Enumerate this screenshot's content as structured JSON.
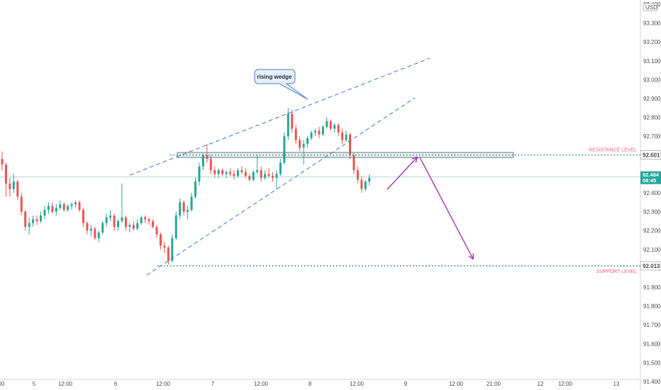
{
  "chart_data": {
    "type": "candlestick",
    "currency": "USD",
    "ylim": [
      91.4,
      93.5
    ],
    "y_ticks": [
      "91.400",
      "91.500",
      "91.600",
      "91.700",
      "91.800",
      "91.900",
      "92.100",
      "92.200",
      "92.300",
      "92.400",
      "92.700",
      "92.800",
      "92.900",
      "93.000",
      "93.100",
      "93.200",
      "93.300",
      "93.400"
    ],
    "x_ticks": [
      "00",
      "5",
      "12:00",
      "6",
      "12:00",
      "7",
      "12:00",
      "8",
      "12:00",
      "9",
      "12:00",
      "21:00",
      "12",
      "12:00",
      "13"
    ],
    "last_price": {
      "value": "92.484",
      "countdown": "08:45"
    },
    "resistance": {
      "label": "RESISTANCE LEVEL",
      "value": "92.601"
    },
    "support": {
      "label": "SUPPORT LEVEL",
      "value": "92.013"
    },
    "annotation": "rising wedge",
    "candles": [
      [
        92.58,
        92.62,
        92.52,
        92.55
      ],
      [
        92.55,
        92.56,
        92.38,
        92.45
      ],
      [
        92.45,
        92.48,
        92.38,
        92.42
      ],
      [
        92.42,
        92.5,
        92.4,
        92.46
      ],
      [
        92.46,
        92.47,
        92.36,
        92.38
      ],
      [
        92.38,
        92.4,
        92.28,
        92.3
      ],
      [
        92.3,
        92.31,
        92.2,
        92.22
      ],
      [
        92.22,
        92.27,
        92.18,
        92.24
      ],
      [
        92.24,
        92.28,
        92.22,
        92.26
      ],
      [
        92.26,
        92.28,
        92.23,
        92.25
      ],
      [
        92.25,
        92.3,
        92.24,
        92.28
      ],
      [
        92.28,
        92.33,
        92.26,
        92.31
      ],
      [
        92.31,
        92.35,
        92.29,
        92.33
      ],
      [
        92.33,
        92.35,
        92.29,
        92.3
      ],
      [
        92.3,
        92.34,
        92.28,
        92.32
      ],
      [
        92.32,
        92.36,
        92.31,
        92.34
      ],
      [
        92.34,
        92.35,
        92.3,
        92.31
      ],
      [
        92.31,
        92.34,
        92.3,
        92.33
      ],
      [
        92.33,
        92.35,
        92.31,
        92.34
      ],
      [
        92.34,
        92.36,
        92.32,
        92.35
      ],
      [
        92.35,
        92.36,
        92.3,
        92.31
      ],
      [
        92.31,
        92.32,
        92.22,
        92.24
      ],
      [
        92.24,
        92.25,
        92.18,
        92.2
      ],
      [
        92.2,
        92.23,
        92.17,
        92.21
      ],
      [
        92.21,
        92.22,
        92.15,
        92.16
      ],
      [
        92.16,
        92.2,
        92.14,
        92.19
      ],
      [
        92.19,
        92.25,
        92.18,
        92.24
      ],
      [
        92.24,
        92.29,
        92.22,
        92.27
      ],
      [
        92.27,
        92.31,
        92.25,
        92.28
      ],
      [
        92.28,
        92.29,
        92.2,
        92.22
      ],
      [
        92.22,
        92.26,
        92.2,
        92.25
      ],
      [
        92.25,
        92.45,
        92.24,
        92.27
      ],
      [
        92.27,
        92.28,
        92.2,
        92.22
      ],
      [
        92.22,
        92.24,
        92.19,
        92.23
      ],
      [
        92.23,
        92.25,
        92.2,
        92.21
      ],
      [
        92.21,
        92.26,
        92.2,
        92.24
      ],
      [
        92.24,
        92.28,
        92.23,
        92.27
      ],
      [
        92.27,
        92.28,
        92.24,
        92.26
      ],
      [
        92.26,
        92.27,
        92.23,
        92.25
      ],
      [
        92.25,
        92.26,
        92.21,
        92.22
      ],
      [
        92.22,
        92.23,
        92.16,
        92.18
      ],
      [
        92.18,
        92.19,
        92.1,
        92.12
      ],
      [
        92.12,
        92.14,
        92.08,
        92.11
      ],
      [
        92.11,
        92.12,
        92.02,
        92.04
      ],
      [
        92.04,
        92.18,
        92.03,
        92.16
      ],
      [
        92.16,
        92.3,
        92.15,
        92.28
      ],
      [
        92.28,
        92.37,
        92.26,
        92.35
      ],
      [
        92.35,
        92.36,
        92.28,
        92.3
      ],
      [
        92.3,
        92.33,
        92.26,
        92.31
      ],
      [
        92.31,
        92.4,
        92.3,
        92.38
      ],
      [
        92.38,
        92.48,
        92.37,
        92.46
      ],
      [
        92.46,
        92.56,
        92.44,
        92.54
      ],
      [
        92.54,
        92.61,
        92.52,
        92.6
      ],
      [
        92.6,
        92.66,
        92.56,
        92.58
      ],
      [
        92.58,
        92.6,
        92.5,
        92.52
      ],
      [
        92.52,
        92.54,
        92.48,
        92.5
      ],
      [
        92.5,
        92.53,
        92.48,
        92.52
      ],
      [
        92.52,
        92.53,
        92.49,
        92.5
      ],
      [
        92.5,
        92.52,
        92.48,
        92.51
      ],
      [
        92.51,
        92.53,
        92.49,
        92.5
      ],
      [
        92.5,
        92.52,
        92.47,
        92.49
      ],
      [
        92.49,
        92.53,
        92.48,
        92.52
      ],
      [
        92.52,
        92.54,
        92.5,
        92.51
      ],
      [
        92.51,
        92.53,
        92.48,
        92.49
      ],
      [
        92.49,
        92.5,
        92.46,
        92.47
      ],
      [
        92.47,
        92.52,
        92.46,
        92.51
      ],
      [
        92.51,
        92.6,
        92.5,
        92.52
      ],
      [
        92.52,
        92.54,
        92.46,
        92.48
      ],
      [
        92.48,
        92.52,
        92.47,
        92.5
      ],
      [
        92.5,
        92.53,
        92.48,
        92.49
      ],
      [
        92.49,
        92.51,
        92.46,
        92.48
      ],
      [
        92.48,
        92.52,
        92.42,
        92.5
      ],
      [
        92.5,
        92.58,
        92.49,
        92.56
      ],
      [
        92.56,
        92.72,
        92.55,
        92.7
      ],
      [
        92.7,
        92.85,
        92.68,
        92.82
      ],
      [
        92.82,
        92.84,
        92.72,
        92.74
      ],
      [
        92.74,
        92.76,
        92.66,
        92.68
      ],
      [
        92.68,
        92.7,
        92.62,
        92.64
      ],
      [
        92.64,
        92.68,
        92.55,
        92.66
      ],
      [
        92.66,
        92.7,
        92.64,
        92.69
      ],
      [
        92.69,
        92.73,
        92.68,
        92.72
      ],
      [
        92.72,
        92.74,
        92.7,
        92.73
      ],
      [
        92.73,
        92.75,
        92.69,
        92.71
      ],
      [
        92.71,
        92.76,
        92.7,
        92.75
      ],
      [
        92.75,
        92.8,
        92.74,
        92.78
      ],
      [
        92.78,
        92.79,
        92.73,
        92.74
      ],
      [
        92.74,
        92.77,
        92.72,
        92.76
      ],
      [
        92.76,
        92.77,
        92.7,
        92.72
      ],
      [
        92.72,
        92.74,
        92.66,
        92.68
      ],
      [
        92.68,
        92.73,
        92.67,
        92.71
      ],
      [
        92.71,
        92.72,
        92.58,
        92.6
      ],
      [
        92.6,
        92.61,
        92.5,
        92.52
      ],
      [
        92.52,
        92.54,
        92.45,
        92.47
      ],
      [
        92.47,
        92.49,
        92.4,
        92.42
      ],
      [
        92.42,
        92.47,
        92.41,
        92.46
      ],
      [
        92.46,
        92.5,
        92.44,
        92.48
      ]
    ]
  }
}
